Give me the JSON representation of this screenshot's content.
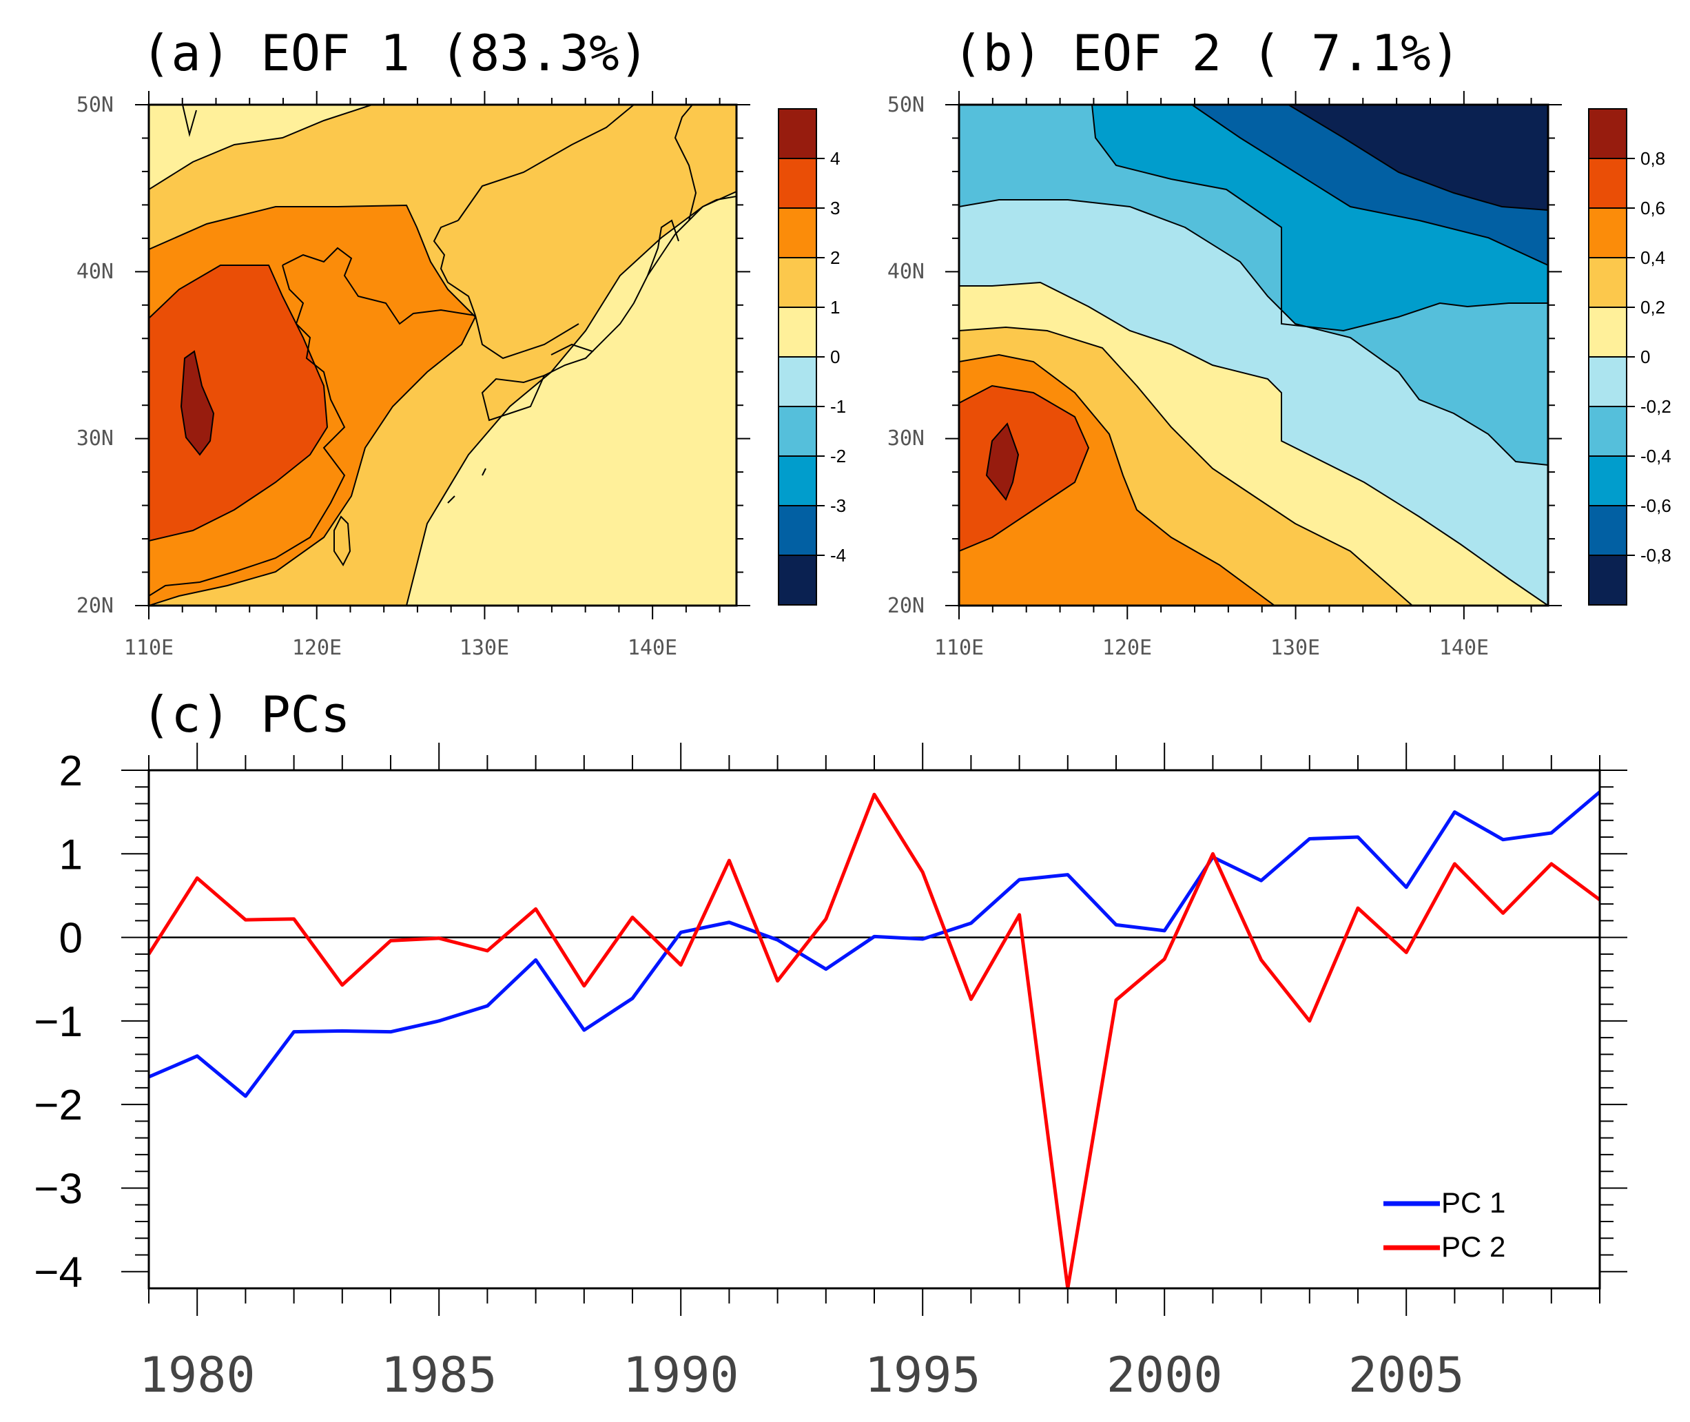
{
  "colors": {
    "warm": [
      "#fff09a",
      "#fcc84c",
      "#fb8c0a",
      "#ea4e06",
      "#971c0e"
    ],
    "cool": [
      "#ace4ef",
      "#55bfdb",
      "#019dcc",
      "#0260a3",
      "#0a2151"
    ],
    "pc1": "#0015ff",
    "pc2": "#ff0000"
  },
  "lat_labels": [
    "50N",
    "40N",
    "30N",
    "20N"
  ],
  "lon_labels": [
    "110E",
    "120E",
    "130E",
    "140E"
  ],
  "chart_data": [
    {
      "id": "a",
      "type": "heatmap",
      "title": "(a) EOF 1 (83.3%)",
      "xlabel": "",
      "ylabel": "",
      "xlim": [
        110,
        145
      ],
      "ylim": [
        20,
        50
      ],
      "colorbar": {
        "levels": [
          "4",
          "3",
          "2",
          "1",
          "0",
          "-1",
          "-2",
          "-3",
          "-4"
        ],
        "bins_high_to_low": [
          "#971c0e",
          "#ea4e06",
          "#fb8c0a",
          "#fcc84c",
          "#fff09a",
          "#ace4ef",
          "#55bfdb",
          "#019dcc",
          "#0260a3",
          "#0a2151"
        ]
      },
      "value_range_shown": [
        0,
        4.5
      ],
      "pattern": "positive everywhere, maximum (>4) near 112.5E 32N, decreasing toward the east and northeast"
    },
    {
      "id": "b",
      "type": "heatmap",
      "title": "(b) EOF 2 ( 7.1%)",
      "xlabel": "",
      "ylabel": "",
      "xlim": [
        110,
        145
      ],
      "ylim": [
        20,
        50
      ],
      "colorbar": {
        "levels": [
          "0,8",
          "0,6",
          "0,4",
          "0,2",
          "0",
          "-0,2",
          "-0,4",
          "-0,6",
          "-0,8"
        ],
        "bins_high_to_low": [
          "#971c0e",
          "#ea4e06",
          "#fb8c0a",
          "#fcc84c",
          "#fff09a",
          "#ace4ef",
          "#55bfdb",
          "#019dcc",
          "#0260a3",
          "#0a2151"
        ]
      },
      "value_range_shown": [
        -0.9,
        0.9
      ],
      "pattern": "dipole: positive (>0.8) in the southwest near 112.5E 28N, negative (<-0.8) in the northeast"
    },
    {
      "id": "c",
      "type": "line",
      "title": "(c) PCs",
      "xlabel": "",
      "ylabel": "",
      "xlim": [
        1979,
        2009
      ],
      "ylim": [
        -4.2,
        2
      ],
      "x_ticks": [
        1980,
        1985,
        1990,
        1995,
        2000,
        2005
      ],
      "y_ticks": [
        2,
        1,
        0,
        -1,
        -2,
        -3,
        -4
      ],
      "x": [
        1979,
        1980,
        1981,
        1982,
        1983,
        1984,
        1985,
        1986,
        1987,
        1988,
        1989,
        1990,
        1991,
        1992,
        1993,
        1994,
        1995,
        1996,
        1997,
        1998,
        1999,
        2000,
        2001,
        2002,
        2003,
        2004,
        2005,
        2006,
        2007,
        2008,
        2009
      ],
      "series": [
        {
          "name": "PC 1",
          "color": "#0015ff",
          "values": [
            -1.67,
            -1.42,
            -1.9,
            -1.13,
            -1.12,
            -1.13,
            -1.0,
            -0.82,
            -0.27,
            -1.11,
            -0.73,
            0.06,
            0.18,
            -0.03,
            -0.38,
            0.01,
            -0.02,
            0.17,
            0.69,
            0.75,
            0.15,
            0.08,
            0.96,
            0.68,
            1.18,
            1.2,
            0.6,
            1.5,
            1.17,
            1.25,
            1.74
          ]
        },
        {
          "name": "PC 2",
          "color": "#ff0000",
          "values": [
            -0.2,
            0.71,
            0.21,
            0.22,
            -0.57,
            -0.04,
            -0.01,
            -0.16,
            0.34,
            -0.58,
            0.24,
            -0.33,
            0.92,
            -0.52,
            0.22,
            1.71,
            0.78,
            -0.74,
            0.27,
            -4.2,
            -0.75,
            -0.26,
            1.0,
            -0.27,
            -1.0,
            0.35,
            -0.18,
            0.88,
            0.29,
            0.88,
            0.45
          ]
        }
      ],
      "zero_line": true,
      "legend_placement": "bottom-right"
    }
  ]
}
